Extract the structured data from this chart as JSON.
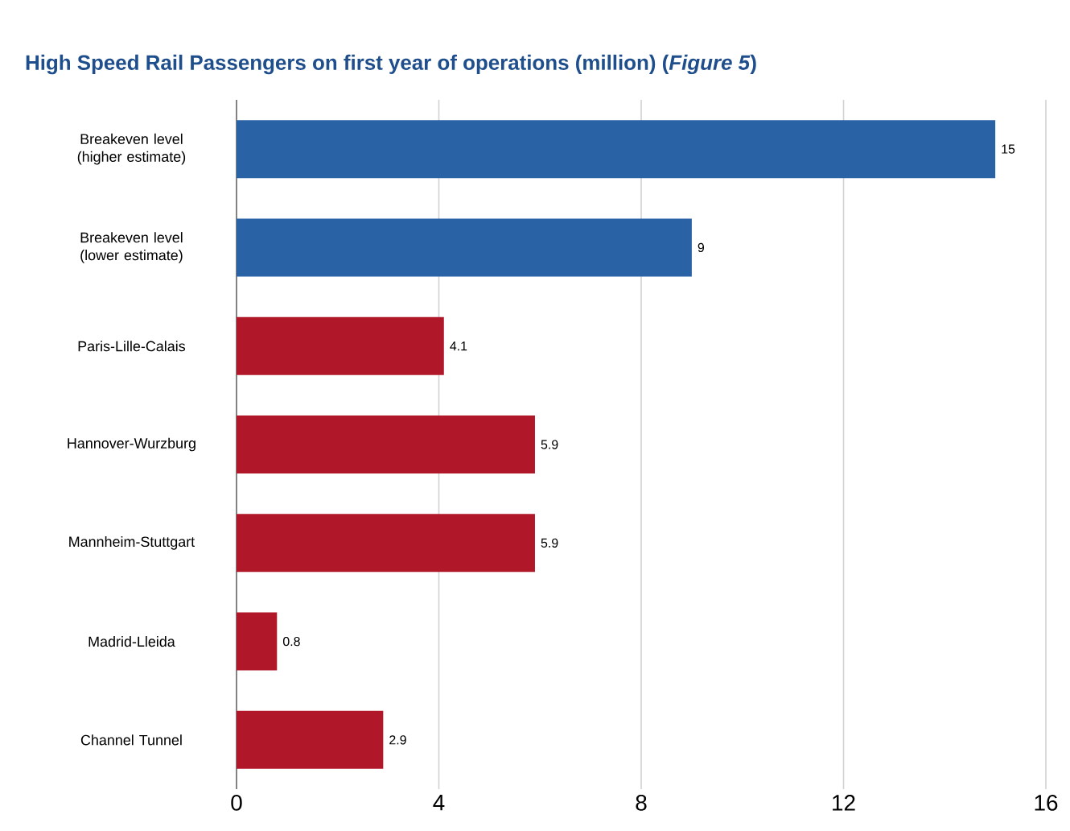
{
  "chart_data": {
    "type": "bar",
    "orientation": "horizontal",
    "title": "High Speed Rail Passengers on first year of operations (million) (*Figure 5*)",
    "categories": [
      "Breakeven level (higher estimate)",
      "Breakeven level (lower estimate)",
      "Paris-Lille-Calais",
      "Hannover-Wurzburg",
      "Mannheim-Stuttgart",
      "Madrid-Lleida",
      "Channel Tunnel"
    ],
    "values": [
      15,
      9,
      4.1,
      5.9,
      5.9,
      0.8,
      2.9
    ],
    "colors": [
      "#2a62a6",
      "#2a62a6",
      "#b0182a",
      "#b0182a",
      "#b0182a",
      "#b0182a",
      "#b0182a"
    ],
    "xlim": [
      0,
      16
    ],
    "xticks": [
      0,
      4,
      8,
      12,
      16
    ],
    "grid": "x",
    "data_labels": true
  }
}
